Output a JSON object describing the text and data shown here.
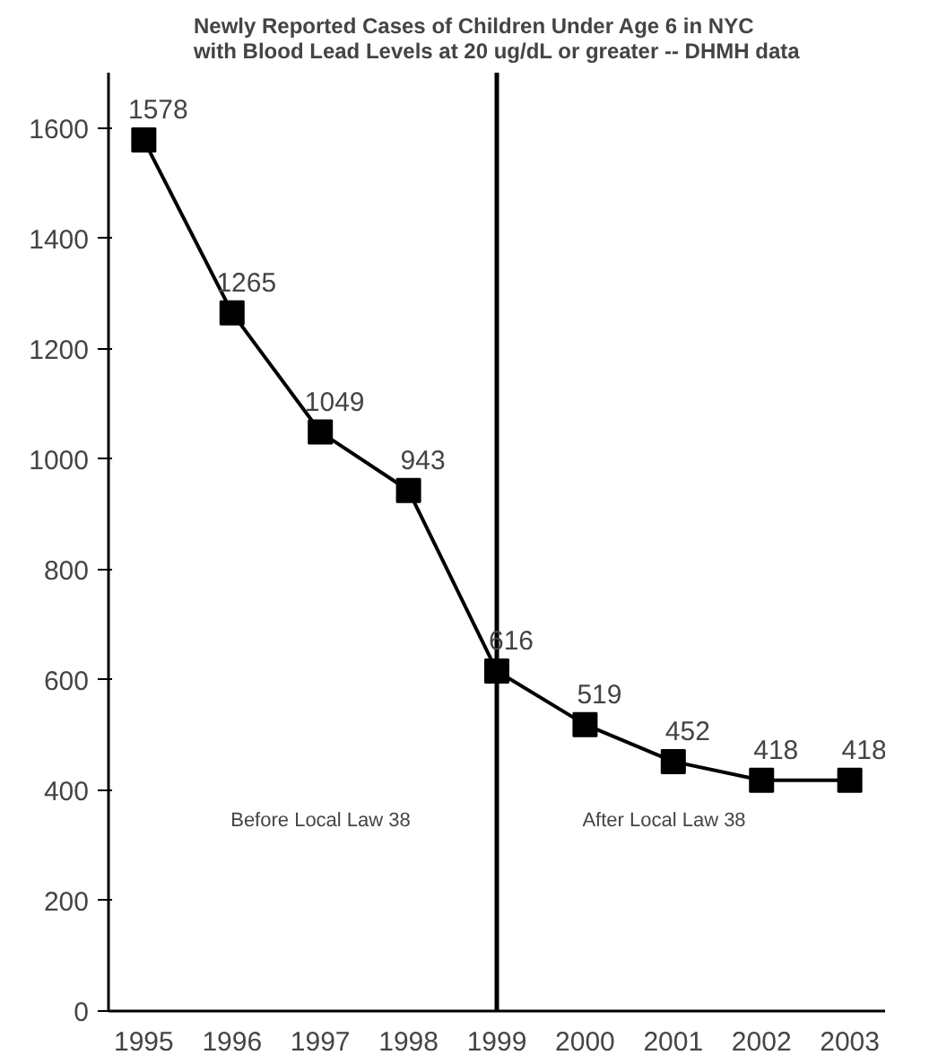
{
  "chart_data": {
    "type": "line",
    "title": "Newly Reported Cases of Children Under Age 6 in NYC\nwith Blood Lead Levels at 20 ug/dL or greater -- DHMH data",
    "x": [
      1995,
      1996,
      1997,
      1998,
      1999,
      2000,
      2001,
      2002,
      2003
    ],
    "series": [
      {
        "color": "#000000",
        "values": [
          1578,
          1265,
          1049,
          943,
          616,
          519,
          452,
          418,
          418
        ]
      }
    ],
    "xlim": [
      1994.6,
      2003.4
    ],
    "xticks": [
      1995,
      1996,
      1997,
      1998,
      1999,
      2000,
      2001,
      2002,
      2003
    ],
    "ylim": [
      0,
      1700
    ],
    "yticks": [
      0,
      200,
      400,
      600,
      800,
      1000,
      1200,
      1400,
      1600
    ],
    "ref_lines": [
      {
        "axis": "x",
        "value": 1999,
        "color": "#000000"
      }
    ],
    "annotations": [
      "Before Local Law 38",
      "After Local Law 38"
    ],
    "data_labels": true,
    "marker": "square",
    "line_style": "solid",
    "grid": false
  }
}
